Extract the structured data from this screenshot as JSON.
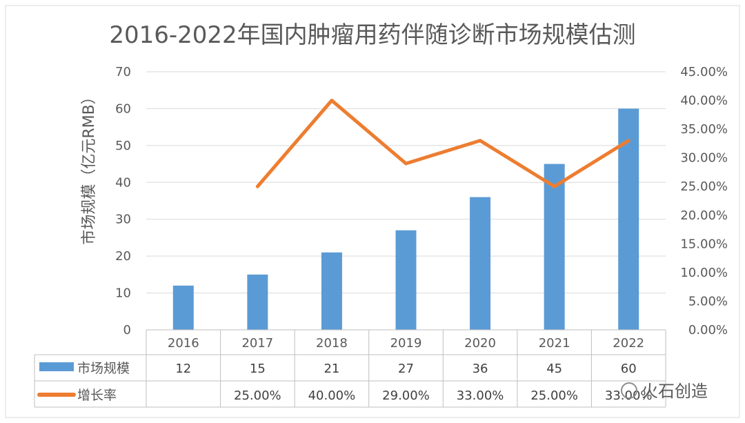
{
  "chart_data": {
    "type": "bar",
    "title": "2016-2022年国内肿瘤用药伴随诊断市场规模估测",
    "ylabel": "市场规模（亿元RMB）",
    "ylim": [
      0,
      70
    ],
    "y2lim": [
      0,
      0.45
    ],
    "y_ticks": [
      "0",
      "10",
      "20",
      "30",
      "40",
      "50",
      "60",
      "70"
    ],
    "y2_ticks": [
      "0.00%",
      "5.00%",
      "10.00%",
      "15.00%",
      "20.00%",
      "25.00%",
      "30.00%",
      "35.00%",
      "40.00%",
      "45.00%"
    ],
    "categories": [
      "2016",
      "2017",
      "2018",
      "2019",
      "2020",
      "2021",
      "2022"
    ],
    "series": [
      {
        "name": "市场规模",
        "type": "bar",
        "axis": "left",
        "color": "#5b9bd5",
        "values": [
          12,
          15,
          21,
          27,
          36,
          45,
          60
        ],
        "labels": [
          "12",
          "15",
          "21",
          "27",
          "36",
          "45",
          "60"
        ]
      },
      {
        "name": "增长率",
        "type": "line",
        "axis": "right",
        "color": "#ed7d31",
        "values": [
          null,
          0.25,
          0.4,
          0.29,
          0.33,
          0.25,
          0.33
        ],
        "labels": [
          "",
          "25.00%",
          "40.00%",
          "29.00%",
          "33.00%",
          "25.00%",
          "33.00%"
        ]
      }
    ],
    "grid": true,
    "legend": "data-table"
  },
  "watermark": "火石创造"
}
